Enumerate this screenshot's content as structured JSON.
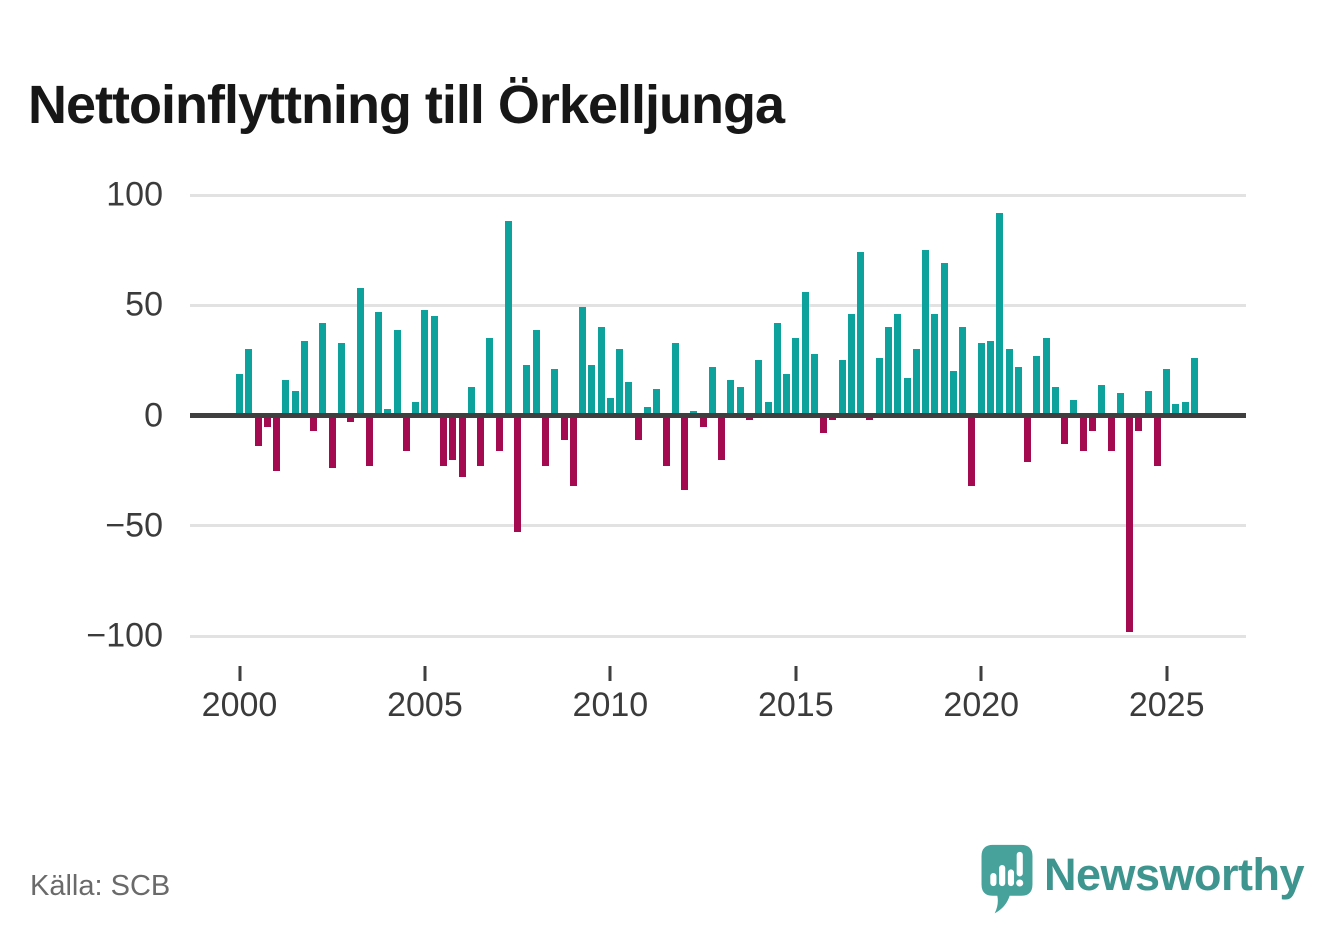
{
  "title": "Nettoinflyttning till Örkelljunga",
  "source": "Källa: SCB",
  "branding": {
    "name": "Newsworthy"
  },
  "colors": {
    "positive": "#0da29b",
    "negative": "#a30a50",
    "grid": "#e2e2e2",
    "zero_line": "#3f3f3f",
    "axis_text": "#3b3b3b",
    "title_text": "#171717",
    "source_text": "#6a6a6a",
    "logo_icon": "#47a29c",
    "logo_text": "#3e948e"
  },
  "chart_data": {
    "type": "bar",
    "title": "Nettoinflyttning till Örkelljunga",
    "xlabel": "",
    "ylabel": "",
    "frequency": "quarterly",
    "start": "2000Q1",
    "end": "2025Q4",
    "ylim": [
      -110,
      110
    ],
    "grid": "horizontal",
    "legend": "none",
    "y_ticks": [
      100,
      50,
      0,
      -50,
      -100
    ],
    "y_tick_labels": [
      "100",
      "50",
      "0",
      "−50",
      "−100"
    ],
    "x_ticks": [
      2000,
      2005,
      2010,
      2015,
      2020,
      2025
    ],
    "x_tick_labels": [
      "2000",
      "2005",
      "2010",
      "2015",
      "2020",
      "2025"
    ],
    "categories": [
      "2000Q1",
      "2000Q2",
      "2000Q3",
      "2000Q4",
      "2001Q1",
      "2001Q2",
      "2001Q3",
      "2001Q4",
      "2002Q1",
      "2002Q2",
      "2002Q3",
      "2002Q4",
      "2003Q1",
      "2003Q2",
      "2003Q3",
      "2003Q4",
      "2004Q1",
      "2004Q2",
      "2004Q3",
      "2004Q4",
      "2005Q1",
      "2005Q2",
      "2005Q3",
      "2005Q4",
      "2006Q1",
      "2006Q2",
      "2006Q3",
      "2006Q4",
      "2007Q1",
      "2007Q2",
      "2007Q3",
      "2007Q4",
      "2008Q1",
      "2008Q2",
      "2008Q3",
      "2008Q4",
      "2009Q1",
      "2009Q2",
      "2009Q3",
      "2009Q4",
      "2010Q1",
      "2010Q2",
      "2010Q3",
      "2010Q4",
      "2011Q1",
      "2011Q2",
      "2011Q3",
      "2011Q4",
      "2012Q1",
      "2012Q2",
      "2012Q3",
      "2012Q4",
      "2013Q1",
      "2013Q2",
      "2013Q3",
      "2013Q4",
      "2014Q1",
      "2014Q2",
      "2014Q3",
      "2014Q4",
      "2015Q1",
      "2015Q2",
      "2015Q3",
      "2015Q4",
      "2016Q1",
      "2016Q2",
      "2016Q3",
      "2016Q4",
      "2017Q1",
      "2017Q2",
      "2017Q3",
      "2017Q4",
      "2018Q1",
      "2018Q2",
      "2018Q3",
      "2018Q4",
      "2019Q1",
      "2019Q2",
      "2019Q3",
      "2019Q4",
      "2020Q1",
      "2020Q2",
      "2020Q3",
      "2020Q4",
      "2021Q1",
      "2021Q2",
      "2021Q3",
      "2021Q4",
      "2022Q1",
      "2022Q2",
      "2022Q3",
      "2022Q4",
      "2023Q1",
      "2023Q2",
      "2023Q3",
      "2023Q4",
      "2024Q1",
      "2024Q2",
      "2024Q3",
      "2024Q4",
      "2025Q1",
      "2025Q2",
      "2025Q3",
      "2025Q4"
    ],
    "values": [
      19,
      30,
      -14,
      -5,
      -25,
      16,
      11,
      34,
      -7,
      42,
      -24,
      33,
      -3,
      58,
      -23,
      47,
      3,
      39,
      -16,
      6,
      48,
      45,
      -23,
      -20,
      -28,
      13,
      -23,
      35,
      -16,
      88,
      -53,
      23,
      39,
      -23,
      21,
      -11,
      -32,
      49,
      23,
      40,
      8,
      30,
      15,
      -11,
      4,
      12,
      -23,
      33,
      -34,
      2,
      -5,
      22,
      -20,
      16,
      13,
      -2,
      25,
      6,
      42,
      19,
      35,
      56,
      28,
      -8,
      -2,
      25,
      46,
      74,
      -2,
      26,
      40,
      46,
      17,
      30,
      75,
      46,
      69,
      20,
      40,
      -32,
      33,
      34,
      92,
      30,
      22,
      -21,
      27,
      35,
      13,
      -13,
      7,
      -16,
      -7,
      14,
      -16,
      10,
      -98,
      -7,
      11,
      -23,
      21,
      5,
      6,
      26
    ]
  }
}
